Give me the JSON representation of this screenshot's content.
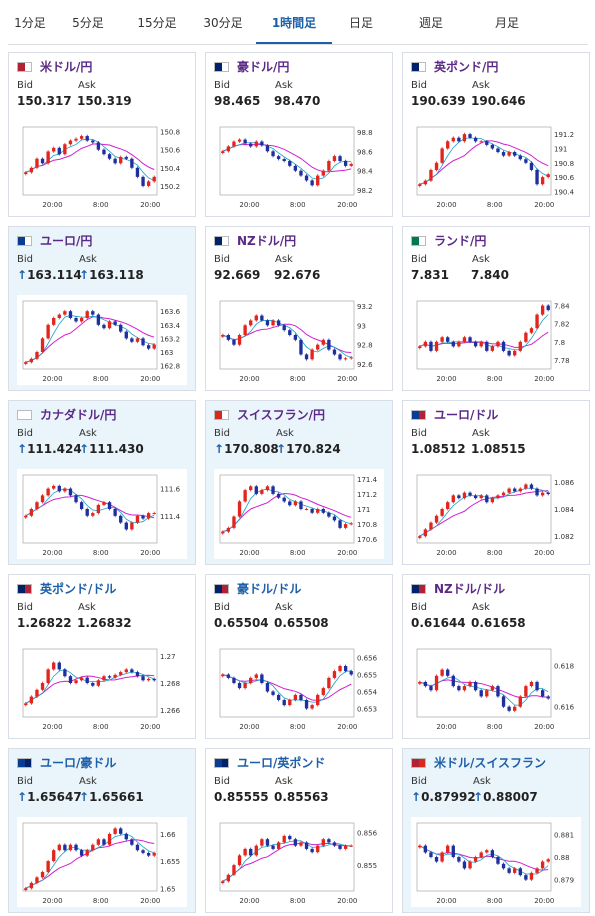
{
  "tabs": [
    "1分足",
    "5分足",
    "15分足",
    "30分足",
    "1時間足",
    "日足",
    "週足",
    "月足"
  ],
  "active_tab": "1時間足",
  "labels": {
    "bid": "Bid",
    "ask": "Ask"
  },
  "colors": {
    "up": "#e2261d",
    "down": "#1f2f9e",
    "ma_short": "#1aa0c8",
    "ma_long": "#d11fd1"
  },
  "cards": [
    {
      "name": "米ドル/円",
      "bid": "150.317",
      "ask": "150.319",
      "arrows": false,
      "highlight": false,
      "name_color": "purple",
      "flag": "us-jp",
      "x_ticks": [
        "20:00",
        "8:00",
        "20:00"
      ],
      "y_ticks": [
        "150.8",
        "150.6",
        "150.4",
        "150.2"
      ],
      "ylim": [
        150.1,
        150.85
      ],
      "closes": [
        150.35,
        150.4,
        150.5,
        150.45,
        150.58,
        150.62,
        150.55,
        150.66,
        150.7,
        150.72,
        150.75,
        150.7,
        150.68,
        150.6,
        150.55,
        150.5,
        150.45,
        150.52,
        150.5,
        150.4,
        150.3,
        150.2,
        150.25,
        150.3
      ]
    },
    {
      "name": "豪ドル/円",
      "bid": "98.465",
      "ask": "98.470",
      "arrows": false,
      "highlight": false,
      "name_color": "purple",
      "flag": "au-jp",
      "x_ticks": [
        "20:00",
        "8:00",
        "20:00"
      ],
      "y_ticks": [
        "98.8",
        "98.6",
        "98.4",
        "98.2"
      ],
      "ylim": [
        98.15,
        98.85
      ],
      "closes": [
        98.6,
        98.65,
        98.7,
        98.72,
        98.68,
        98.65,
        98.7,
        98.66,
        98.6,
        98.55,
        98.52,
        98.5,
        98.45,
        98.4,
        98.35,
        98.3,
        98.25,
        98.35,
        98.4,
        98.5,
        98.55,
        98.5,
        98.45,
        98.47
      ]
    },
    {
      "name": "英ポンド/円",
      "bid": "190.639",
      "ask": "190.646",
      "arrows": false,
      "highlight": false,
      "name_color": "purple",
      "flag": "gb-jp",
      "x_ticks": [
        "20:00",
        "8:00",
        "20:00"
      ],
      "y_ticks": [
        "191.2",
        "191",
        "190.8",
        "190.6",
        "190.4"
      ],
      "ylim": [
        190.35,
        191.3
      ],
      "closes": [
        190.5,
        190.55,
        190.7,
        190.8,
        191.0,
        191.1,
        191.15,
        191.1,
        191.2,
        191.15,
        191.1,
        191.1,
        191.05,
        191.0,
        190.95,
        190.9,
        190.95,
        190.9,
        190.85,
        190.8,
        190.7,
        190.5,
        190.6,
        190.64
      ]
    },
    {
      "name": "ユーロ/円",
      "bid": "163.114",
      "ask": "163.118",
      "arrows": true,
      "highlight": true,
      "name_color": "purple",
      "flag": "eu-jp",
      "x_ticks": [
        "20:00",
        "8:00",
        "20:00"
      ],
      "y_ticks": [
        "163.6",
        "163.4",
        "163.2",
        "163",
        "162.8"
      ],
      "ylim": [
        162.75,
        163.75
      ],
      "closes": [
        162.85,
        162.9,
        163.0,
        163.2,
        163.4,
        163.5,
        163.55,
        163.6,
        163.5,
        163.45,
        163.5,
        163.6,
        163.55,
        163.4,
        163.35,
        163.45,
        163.4,
        163.3,
        163.2,
        163.15,
        163.2,
        163.1,
        163.05,
        163.11
      ]
    },
    {
      "name": "NZドル/円",
      "bid": "92.669",
      "ask": "92.676",
      "arrows": false,
      "highlight": false,
      "name_color": "purple",
      "flag": "nz-jp",
      "x_ticks": [
        "20:00",
        "8:00",
        "20:00"
      ],
      "y_ticks": [
        "93.2",
        "93",
        "92.8",
        "92.6"
      ],
      "ylim": [
        92.55,
        93.25
      ],
      "closes": [
        92.9,
        92.85,
        92.8,
        92.9,
        93.0,
        93.05,
        93.1,
        93.05,
        93.0,
        93.05,
        93.0,
        92.95,
        92.9,
        92.85,
        92.7,
        92.65,
        92.75,
        92.8,
        92.85,
        92.75,
        92.7,
        92.65,
        92.66,
        92.67
      ]
    },
    {
      "name": "ランド/円",
      "bid": "7.831",
      "ask": "7.840",
      "arrows": false,
      "highlight": false,
      "name_color": "purple",
      "flag": "za-jp",
      "x_ticks": [
        "20:00",
        "8:00",
        "20:00"
      ],
      "y_ticks": [
        "7.84",
        "7.82",
        "7.8",
        "7.78"
      ],
      "ylim": [
        7.77,
        7.845
      ],
      "closes": [
        7.795,
        7.8,
        7.79,
        7.8,
        7.805,
        7.8,
        7.795,
        7.8,
        7.805,
        7.8,
        7.795,
        7.8,
        7.79,
        7.795,
        7.8,
        7.79,
        7.785,
        7.79,
        7.8,
        7.81,
        7.815,
        7.83,
        7.84,
        7.835
      ]
    },
    {
      "name": "カナダドル/円",
      "bid": "111.424",
      "ask": "111.430",
      "arrows": true,
      "highlight": true,
      "name_color": "purple",
      "flag": "ca-jp",
      "x_ticks": [
        "20:00",
        "8:00",
        "20:00"
      ],
      "y_ticks": [
        "111.6",
        "111.4"
      ],
      "ylim": [
        111.2,
        111.7
      ],
      "closes": [
        111.4,
        111.45,
        111.5,
        111.55,
        111.6,
        111.62,
        111.58,
        111.6,
        111.55,
        111.5,
        111.45,
        111.4,
        111.42,
        111.48,
        111.5,
        111.45,
        111.4,
        111.35,
        111.3,
        111.35,
        111.4,
        111.38,
        111.42,
        111.42
      ]
    },
    {
      "name": "スイスフラン/円",
      "bid": "170.808",
      "ask": "170.824",
      "arrows": true,
      "highlight": true,
      "name_color": "purple",
      "flag": "ch-jp",
      "x_ticks": [
        "20:00",
        "8:00",
        "20:00"
      ],
      "y_ticks": [
        "171.4",
        "171.2",
        "171",
        "170.8",
        "170.6"
      ],
      "ylim": [
        170.55,
        171.45
      ],
      "closes": [
        170.7,
        170.75,
        170.9,
        171.1,
        171.25,
        171.3,
        171.2,
        171.25,
        171.3,
        171.2,
        171.15,
        171.1,
        171.05,
        171.1,
        171.0,
        171.0,
        170.95,
        171.0,
        170.95,
        170.9,
        170.85,
        170.75,
        170.8,
        170.81
      ]
    },
    {
      "name": "ユーロ/ドル",
      "bid": "1.08512",
      "ask": "1.08515",
      "arrows": false,
      "highlight": false,
      "name_color": "purple",
      "flag": "eu-us",
      "x_ticks": [
        "20:00",
        "8:00",
        "20:00"
      ],
      "y_ticks": [
        "1.086",
        "1.084",
        "1.082"
      ],
      "ylim": [
        1.0815,
        1.0865
      ],
      "closes": [
        1.082,
        1.0825,
        1.083,
        1.0835,
        1.084,
        1.0845,
        1.085,
        1.0848,
        1.0852,
        1.085,
        1.0848,
        1.085,
        1.0845,
        1.0848,
        1.085,
        1.0852,
        1.0855,
        1.0853,
        1.0855,
        1.0858,
        1.0855,
        1.085,
        1.0852,
        1.0851
      ]
    },
    {
      "name": "英ポンド/ドル",
      "bid": "1.26822",
      "ask": "1.26832",
      "arrows": false,
      "highlight": false,
      "name_color": "blue",
      "flag": "gb-us",
      "x_ticks": [
        "20:00",
        "8:00",
        "20:00"
      ],
      "y_ticks": [
        "1.27",
        "1.268",
        "1.266"
      ],
      "ylim": [
        1.2655,
        1.2705
      ],
      "closes": [
        1.2665,
        1.267,
        1.2675,
        1.268,
        1.269,
        1.2695,
        1.269,
        1.2685,
        1.268,
        1.2682,
        1.2684,
        1.268,
        1.2678,
        1.2682,
        1.2685,
        1.2684,
        1.2686,
        1.2688,
        1.269,
        1.2688,
        1.2685,
        1.2682,
        1.2683,
        1.2682
      ]
    },
    {
      "name": "豪ドル/ドル",
      "bid": "0.65504",
      "ask": "0.65508",
      "arrows": false,
      "highlight": false,
      "name_color": "blue",
      "flag": "au-us",
      "x_ticks": [
        "20:00",
        "8:00",
        "20:00"
      ],
      "y_ticks": [
        "0.656",
        "0.655",
        "0.654",
        "0.653"
      ],
      "ylim": [
        0.6525,
        0.6565
      ],
      "closes": [
        0.655,
        0.6548,
        0.6545,
        0.6542,
        0.6545,
        0.6548,
        0.655,
        0.6545,
        0.654,
        0.6538,
        0.6535,
        0.6532,
        0.6535,
        0.6538,
        0.6535,
        0.653,
        0.6532,
        0.6538,
        0.6542,
        0.6548,
        0.6552,
        0.6555,
        0.6552,
        0.655
      ]
    },
    {
      "name": "NZドル/ドル",
      "bid": "0.61644",
      "ask": "0.61658",
      "arrows": false,
      "highlight": false,
      "name_color": "purple",
      "flag": "nz-us",
      "x_ticks": [
        "20:00",
        "8:00",
        "20:00"
      ],
      "y_ticks": [
        "0.618",
        "0.616"
      ],
      "ylim": [
        0.6155,
        0.6188
      ],
      "closes": [
        0.6172,
        0.617,
        0.6168,
        0.6175,
        0.6178,
        0.6175,
        0.617,
        0.6168,
        0.617,
        0.6172,
        0.6168,
        0.6165,
        0.6168,
        0.617,
        0.6165,
        0.616,
        0.6158,
        0.616,
        0.6165,
        0.617,
        0.6172,
        0.6168,
        0.6165,
        0.6164
      ]
    },
    {
      "name": "ユーロ/豪ドル",
      "bid": "1.65647",
      "ask": "1.65661",
      "arrows": true,
      "highlight": true,
      "name_color": "blue",
      "flag": "eu-au",
      "x_ticks": [
        "20:00",
        "8:00",
        "20:00"
      ],
      "y_ticks": [
        "1.66",
        "1.655",
        "1.65"
      ],
      "ylim": [
        1.6495,
        1.662
      ],
      "closes": [
        1.65,
        1.651,
        1.652,
        1.653,
        1.655,
        1.657,
        1.658,
        1.657,
        1.658,
        1.657,
        1.656,
        1.657,
        1.658,
        1.659,
        1.658,
        1.66,
        1.661,
        1.66,
        1.659,
        1.658,
        1.657,
        1.6565,
        1.656,
        1.6565
      ]
    },
    {
      "name": "ユーロ/英ポンド",
      "bid": "0.85555",
      "ask": "0.85563",
      "arrows": false,
      "highlight": false,
      "name_color": "blue",
      "flag": "eu-gb",
      "x_ticks": [
        "20:00",
        "8:00",
        "20:00"
      ],
      "y_ticks": [
        "0.856",
        "0.855"
      ],
      "ylim": [
        0.8542,
        0.8563
      ],
      "closes": [
        0.8545,
        0.8547,
        0.855,
        0.8553,
        0.8555,
        0.8553,
        0.8556,
        0.8558,
        0.8556,
        0.8555,
        0.8557,
        0.8559,
        0.8558,
        0.8556,
        0.8557,
        0.8555,
        0.8554,
        0.8556,
        0.8558,
        0.8557,
        0.8556,
        0.8555,
        0.8556,
        0.8556
      ]
    },
    {
      "name": "米ドル/スイスフラン",
      "bid": "0.87992",
      "ask": "0.88007",
      "arrows": true,
      "highlight": true,
      "name_color": "blue",
      "flag": "us-ch",
      "x_ticks": [
        "20:00",
        "8:00",
        "20:00"
      ],
      "y_ticks": [
        "0.881",
        "0.88",
        "0.879"
      ],
      "ylim": [
        0.8785,
        0.8815
      ],
      "closes": [
        0.8805,
        0.8802,
        0.88,
        0.8798,
        0.8802,
        0.8805,
        0.88,
        0.8798,
        0.8795,
        0.8798,
        0.88,
        0.8802,
        0.8803,
        0.88,
        0.8797,
        0.8795,
        0.8793,
        0.8795,
        0.8792,
        0.879,
        0.8793,
        0.8795,
        0.8798,
        0.8799
      ]
    }
  ]
}
